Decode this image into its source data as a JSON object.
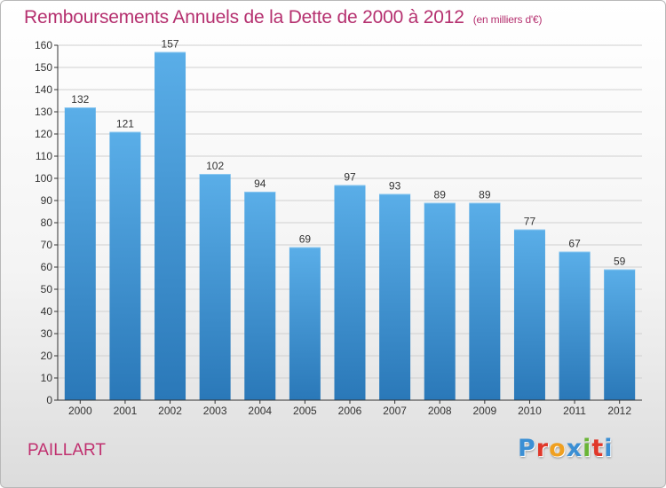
{
  "header": {
    "title": "Remboursements Annuels de la Dette de 2000 à 2012",
    "unit": "(en milliers d'€)"
  },
  "footer": {
    "commune": "PAILLART",
    "logo_letters": [
      "P",
      "r",
      "o",
      "x",
      "i",
      "t",
      "i"
    ],
    "logo_colors": [
      "#3b8fd4",
      "#e0382a",
      "#f0a020",
      "#3b8fd4",
      "#6ab536",
      "#e0382a",
      "#3b8fd4"
    ]
  },
  "colors": {
    "title": "#b5306f",
    "bar_top": "#5aaee8",
    "bar_bottom": "#2a78b8",
    "grid": "#d0d0d0"
  },
  "chart_data": {
    "type": "bar",
    "title": "Remboursements Annuels de la Dette de 2000 à 2012",
    "xlabel": "",
    "ylabel": "",
    "categories": [
      "2000",
      "2001",
      "2002",
      "2003",
      "2004",
      "2005",
      "2006",
      "2007",
      "2008",
      "2009",
      "2010",
      "2011",
      "2012"
    ],
    "values": [
      132,
      121,
      157,
      102,
      94,
      69,
      97,
      93,
      89,
      89,
      77,
      67,
      59
    ],
    "ylim": [
      0,
      160
    ],
    "yticks": [
      0,
      10,
      20,
      30,
      40,
      50,
      60,
      70,
      80,
      90,
      100,
      110,
      120,
      130,
      140,
      150,
      160
    ],
    "grid": true,
    "legend": "none"
  }
}
